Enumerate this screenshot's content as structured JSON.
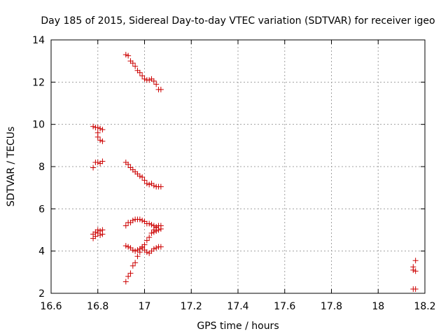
{
  "chart_data": {
    "type": "scatter",
    "title": "Day 185 of 2015, Sidereal Day-to-day VTEC variation (SDTVAR) for receiver igeo",
    "xlabel": "GPS time / hours",
    "ylabel": "SDTVAR / TECUs",
    "xlim": [
      16.6,
      18.2
    ],
    "ylim": [
      2,
      14
    ],
    "xticks": [
      16.6,
      16.8,
      17,
      17.2,
      17.4,
      17.6,
      17.8,
      18,
      18.2
    ],
    "xtick_labels": [
      "16.6",
      "16.8",
      "17",
      "17.2",
      "17.4",
      "17.6",
      "17.8",
      "18",
      "18.2"
    ],
    "yticks": [
      2,
      4,
      6,
      8,
      10,
      12,
      14
    ],
    "ytick_labels": [
      "2",
      "4",
      "6",
      "8",
      "10",
      "12",
      "14"
    ],
    "grid": true,
    "marker": "+",
    "marker_color": "#cc0000",
    "series": [
      {
        "name": "SDTVAR",
        "points": [
          [
            16.78,
            9.9
          ],
          [
            16.79,
            9.85
          ],
          [
            16.8,
            9.85
          ],
          [
            16.81,
            9.8
          ],
          [
            16.82,
            9.75
          ],
          [
            16.8,
            9.6
          ],
          [
            16.8,
            9.4
          ],
          [
            16.81,
            9.25
          ],
          [
            16.82,
            9.2
          ],
          [
            16.78,
            7.95
          ],
          [
            16.79,
            8.2
          ],
          [
            16.8,
            8.2
          ],
          [
            16.81,
            8.15
          ],
          [
            16.82,
            8.25
          ],
          [
            16.78,
            4.6
          ],
          [
            16.78,
            4.8
          ],
          [
            16.79,
            4.9
          ],
          [
            16.79,
            4.7
          ],
          [
            16.8,
            4.85
          ],
          [
            16.8,
            5.0
          ],
          [
            16.81,
            4.75
          ],
          [
            16.81,
            4.95
          ],
          [
            16.82,
            4.8
          ],
          [
            16.82,
            5.0
          ],
          [
            16.92,
            13.3
          ],
          [
            16.93,
            13.25
          ],
          [
            16.94,
            13.0
          ],
          [
            16.95,
            12.9
          ],
          [
            16.96,
            12.75
          ],
          [
            16.97,
            12.55
          ],
          [
            16.98,
            12.45
          ],
          [
            16.99,
            12.3
          ],
          [
            17.0,
            12.15
          ],
          [
            17.01,
            12.1
          ],
          [
            17.02,
            12.1
          ],
          [
            17.03,
            12.15
          ],
          [
            17.04,
            12.05
          ],
          [
            17.05,
            11.9
          ],
          [
            17.06,
            11.65
          ],
          [
            17.07,
            11.65
          ],
          [
            16.92,
            8.2
          ],
          [
            16.93,
            8.1
          ],
          [
            16.94,
            7.95
          ],
          [
            16.95,
            7.85
          ],
          [
            16.96,
            7.75
          ],
          [
            16.97,
            7.65
          ],
          [
            16.98,
            7.55
          ],
          [
            16.99,
            7.5
          ],
          [
            17.0,
            7.35
          ],
          [
            17.01,
            7.2
          ],
          [
            17.02,
            7.15
          ],
          [
            17.03,
            7.2
          ],
          [
            17.04,
            7.1
          ],
          [
            17.05,
            7.05
          ],
          [
            17.06,
            7.05
          ],
          [
            17.07,
            7.05
          ],
          [
            16.92,
            5.2
          ],
          [
            16.93,
            5.35
          ],
          [
            16.94,
            5.35
          ],
          [
            16.95,
            5.45
          ],
          [
            16.96,
            5.5
          ],
          [
            16.97,
            5.5
          ],
          [
            16.98,
            5.5
          ],
          [
            16.99,
            5.45
          ],
          [
            17.0,
            5.4
          ],
          [
            17.01,
            5.3
          ],
          [
            17.02,
            5.3
          ],
          [
            17.03,
            5.25
          ],
          [
            17.04,
            5.2
          ],
          [
            17.05,
            5.15
          ],
          [
            17.06,
            5.2
          ],
          [
            17.07,
            5.2
          ],
          [
            17.04,
            4.9
          ],
          [
            17.05,
            4.95
          ],
          [
            17.06,
            5.0
          ],
          [
            17.07,
            5.05
          ],
          [
            17.05,
            5.1
          ],
          [
            16.92,
            2.55
          ],
          [
            16.93,
            2.8
          ],
          [
            16.94,
            2.95
          ],
          [
            16.95,
            3.3
          ],
          [
            16.96,
            3.45
          ],
          [
            16.97,
            3.75
          ],
          [
            16.98,
            3.95
          ],
          [
            16.99,
            4.2
          ],
          [
            17.0,
            4.3
          ],
          [
            17.01,
            4.5
          ],
          [
            17.02,
            4.65
          ],
          [
            17.03,
            4.85
          ],
          [
            17.04,
            5.0
          ],
          [
            16.92,
            4.25
          ],
          [
            16.93,
            4.2
          ],
          [
            16.94,
            4.15
          ],
          [
            16.95,
            4.05
          ],
          [
            16.96,
            4.0
          ],
          [
            16.97,
            4.05
          ],
          [
            16.98,
            4.1
          ],
          [
            16.99,
            4.15
          ],
          [
            17.0,
            4.05
          ],
          [
            17.01,
            3.95
          ],
          [
            17.02,
            3.9
          ],
          [
            17.03,
            4.0
          ],
          [
            17.04,
            4.1
          ],
          [
            17.05,
            4.15
          ],
          [
            17.06,
            4.2
          ],
          [
            17.07,
            4.2
          ],
          [
            18.15,
            3.25
          ],
          [
            18.15,
            3.1
          ],
          [
            18.16,
            3.55
          ],
          [
            18.16,
            3.05
          ],
          [
            18.15,
            2.2
          ],
          [
            18.16,
            2.2
          ]
        ]
      }
    ]
  }
}
